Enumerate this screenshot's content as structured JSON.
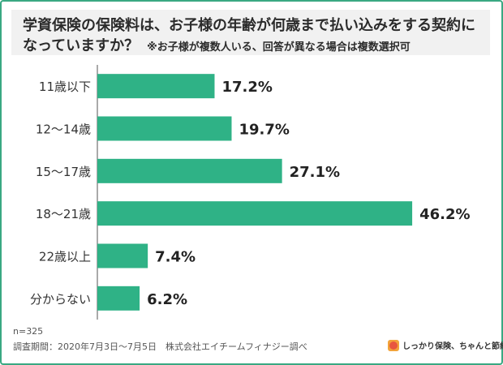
{
  "title": {
    "line1": "学資保険の保険料は、お子様の年齢が何歳まで払い込みをする契約に",
    "line2": "なっていますか？",
    "subtitle": "※お子様が複数人いる、回答が異なる場合は複数選択可"
  },
  "chart_data": {
    "type": "bar",
    "orientation": "horizontal",
    "categories": [
      "11歳以下",
      "12〜14歳",
      "15〜17歳",
      "18〜21歳",
      "22歳以上",
      "分からない"
    ],
    "values": [
      17.2,
      19.7,
      27.1,
      46.2,
      7.4,
      6.2
    ],
    "value_labels": [
      "17.2%",
      "19.7%",
      "27.1%",
      "46.2%",
      "7.4%",
      "6.2%"
    ],
    "xlim": [
      0,
      50
    ],
    "grid": false,
    "bar_color": "#2fb286"
  },
  "footer": {
    "n": "n=325",
    "source": "調査期間：2020年7月3日〜7月5日　株式会社エイチームフィナジー調べ"
  },
  "logo": {
    "text": "しっかり保険、ちゃんと節約。"
  },
  "colors": {
    "border": "#3aa882",
    "title_bg": "#f1f1f1",
    "axis": "#555555",
    "logo_orange": "#f2a33a",
    "logo_red": "#e8563f"
  }
}
